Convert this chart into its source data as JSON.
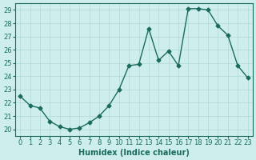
{
  "x": [
    0,
    1,
    2,
    3,
    4,
    5,
    6,
    7,
    8,
    9,
    10,
    11,
    12,
    13,
    14,
    15,
    16,
    17,
    18,
    19,
    20,
    21,
    22,
    23
  ],
  "y": [
    22.5,
    21.8,
    21.6,
    20.6,
    20.2,
    20.0,
    20.1,
    20.5,
    21.0,
    21.8,
    23.0,
    24.8,
    24.9,
    27.6,
    25.2,
    25.9,
    24.8,
    29.1,
    29.1,
    29.0,
    27.8,
    27.1,
    24.8,
    23.9
  ],
  "line_color": "#1a6b5e",
  "marker": "D",
  "markersize": 2.5,
  "linewidth": 1.0,
  "xlabel": "Humidex (Indice chaleur)",
  "xlim": [
    -0.5,
    23.5
  ],
  "ylim": [
    19.5,
    29.5
  ],
  "yticks": [
    20,
    21,
    22,
    23,
    24,
    25,
    26,
    27,
    28,
    29
  ],
  "xticks": [
    0,
    1,
    2,
    3,
    4,
    5,
    6,
    7,
    8,
    9,
    10,
    11,
    12,
    13,
    14,
    15,
    16,
    17,
    18,
    19,
    20,
    21,
    22,
    23
  ],
  "bg_color": "#ceeeed",
  "grid_color": "#b0d8d5",
  "axis_fontsize": 7,
  "tick_fontsize": 6
}
